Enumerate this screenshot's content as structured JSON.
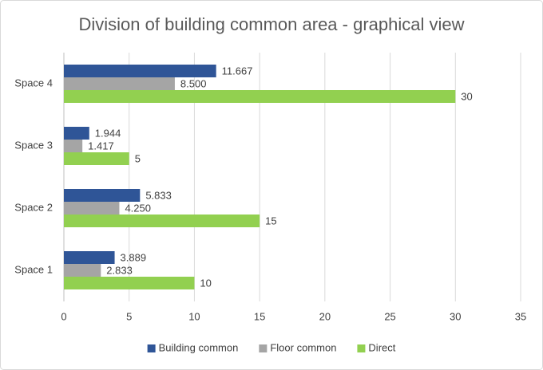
{
  "chart_data": {
    "type": "hbar",
    "title": "Division of building common area - graphical view",
    "categories": [
      "Space 1",
      "Space 2",
      "Space 3",
      "Space 4"
    ],
    "series": [
      {
        "name": "Building common",
        "color": "#2f5597",
        "values": [
          3.889,
          5.833,
          1.944,
          11.667
        ]
      },
      {
        "name": "Floor common",
        "color": "#a5a5a5",
        "values": [
          2.833,
          4.25,
          1.417,
          8.5
        ],
        "value_labels": [
          "2.833",
          "4.250",
          "1.417",
          "8.500"
        ]
      },
      {
        "name": "Direct",
        "color": "#92d050",
        "values": [
          10,
          15,
          5,
          30
        ]
      }
    ],
    "xlim": [
      0,
      35
    ],
    "xticks": [
      0,
      5,
      10,
      15,
      20,
      25,
      30,
      35
    ],
    "grid": true,
    "legend": "bottom"
  }
}
